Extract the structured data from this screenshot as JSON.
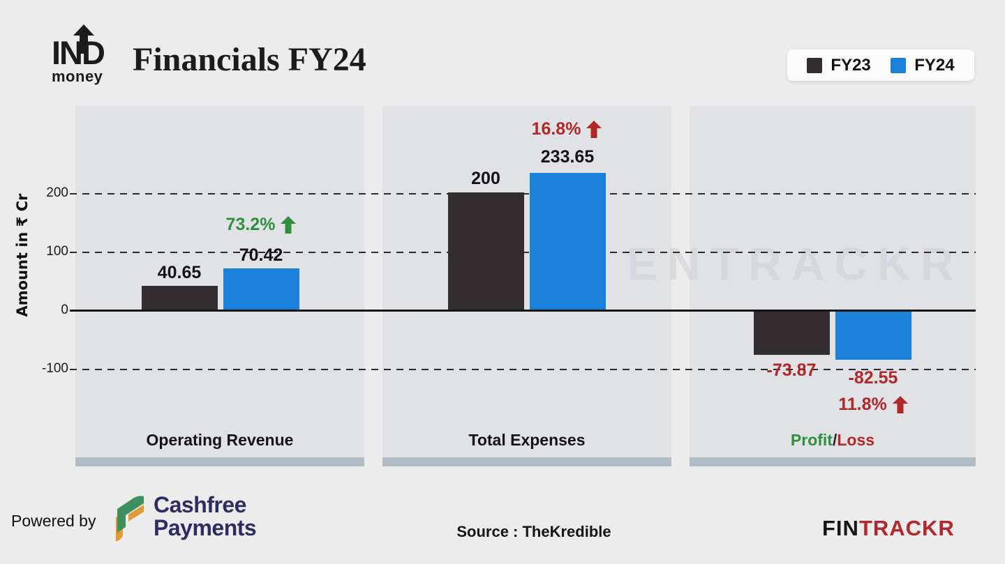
{
  "header": {
    "logo_line1": "IND",
    "logo_line2": "money",
    "title": "Financials FY24"
  },
  "legend": {
    "items": [
      {
        "label": "FY23",
        "color": "#332d2f"
      },
      {
        "label": "FY24",
        "color": "#1b80d9"
      }
    ]
  },
  "y_axis": {
    "label": "Amount in ₹ Cr",
    "ticks": [
      "200",
      "100",
      "0",
      "-100"
    ]
  },
  "chart_data": {
    "type": "bar",
    "title": "Financials FY24",
    "categories": [
      "Operating Revenue",
      "Total Expenses",
      "Profit/Loss"
    ],
    "series": [
      {
        "name": "FY23",
        "color": "#332d2f",
        "values": [
          40.65,
          200,
          -73.87
        ]
      },
      {
        "name": "FY24",
        "color": "#1b80d9",
        "values": [
          70.42,
          233.65,
          -82.55
        ]
      }
    ],
    "change_labels": [
      {
        "text": "73.2%",
        "direction": "up",
        "color": "#2f8f3d"
      },
      {
        "text": "16.8%",
        "direction": "up",
        "color": "#b22727"
      },
      {
        "text": "11.8%",
        "direction": "up",
        "color": "#b22727"
      }
    ],
    "ylabel": "Amount in ₹ Cr",
    "ylim": [
      -200,
      300
    ],
    "gridlines": [
      200,
      100,
      -100
    ],
    "grid": "dashed-horizontal",
    "legend_position": "top-right"
  },
  "category_labels": {
    "panel1": "Operating Revenue",
    "panel2": "Total Expenses",
    "panel3_profit": "Profit",
    "panel3_slash": "/",
    "panel3_loss": "Loss"
  },
  "watermark": "ENTRACKR",
  "footer": {
    "powered_by": "Powered by",
    "cashfree_line1": "Cashfree",
    "cashfree_line2": "Payments",
    "source": "Source : TheKredible",
    "brand_fin": "FIN",
    "brand_trackr": "TRACKR"
  },
  "colors": {
    "fy23": "#332d2f",
    "fy24": "#1b80d9",
    "positive": "#2f8f3d",
    "negative": "#b22727",
    "panel_bg": "#e1e2e5",
    "page_bg": "#ececec",
    "strip": "#b2bcc7"
  }
}
